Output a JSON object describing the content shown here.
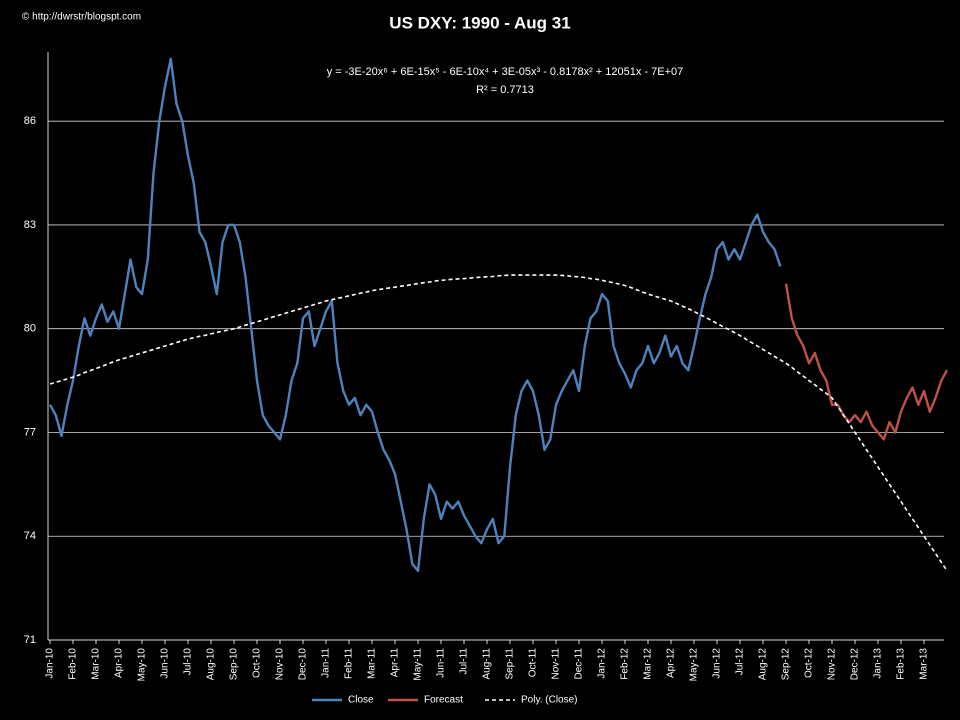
{
  "chart_data": {
    "type": "line",
    "title": "US DXY:  1990 - Aug 31",
    "watermark": "© http://dwrstr/blogspt.com",
    "annotations": [
      "y = -3E-20x⁶ + 6E-15x⁵ - 6E-10x⁴ + 3E-05x³ - 0.8178x² + 12051x - 7E+07",
      "R² = 0.7713"
    ],
    "categories": [
      "Jan-10",
      null,
      null,
      null,
      "Feb-10",
      null,
      null,
      null,
      "Mar-10",
      null,
      null,
      null,
      "Apr-10",
      null,
      null,
      null,
      "May-10",
      null,
      null,
      null,
      "Jun-10",
      null,
      null,
      null,
      "Jul-10",
      null,
      null,
      null,
      "Aug-10",
      null,
      null,
      null,
      "Sep-10",
      null,
      null,
      null,
      "Oct-10",
      null,
      null,
      null,
      "Nov-10",
      null,
      null,
      null,
      "Dec-10",
      null,
      null,
      null,
      "Jan-11",
      null,
      null,
      null,
      "Feb-11",
      null,
      null,
      null,
      "Mar-11",
      null,
      null,
      null,
      "Apr-11",
      null,
      null,
      null,
      "May-11",
      null,
      null,
      null,
      "Jun-11",
      null,
      null,
      null,
      "Jul-11",
      null,
      null,
      null,
      "Aug-11",
      null,
      null,
      null,
      "Sep-11",
      null,
      null,
      null,
      "Oct-11",
      null,
      null,
      null,
      "Nov-11",
      null,
      null,
      null,
      "Dec-11",
      null,
      null,
      null,
      "Jan-12",
      null,
      null,
      null,
      "Feb-12",
      null,
      null,
      null,
      "Mar-12",
      null,
      null,
      null,
      "Apr-12",
      null,
      null,
      null,
      "May-12",
      null,
      null,
      null,
      "Jun-12",
      null,
      null,
      null,
      "Jul-12",
      null,
      null,
      null,
      "Aug-12",
      null,
      null,
      null,
      "Sep-12",
      null,
      null,
      null,
      "Oct-12",
      null,
      null,
      null,
      "Nov-12",
      null,
      null,
      null,
      "Dec-12",
      null,
      null,
      null,
      "Jan-13",
      null,
      null,
      null,
      "Feb-13",
      null,
      null,
      null,
      "Mar-13",
      null,
      null,
      null,
      null
    ],
    "series": [
      {
        "name": "Close",
        "color": "#4f81bd",
        "dash": false,
        "values": [
          77.8,
          77.5,
          76.9,
          77.8,
          78.5,
          79.5,
          80.3,
          79.8,
          80.3,
          80.7,
          80.2,
          80.5,
          80.0,
          81.0,
          82.0,
          81.2,
          81.0,
          82.0,
          84.5,
          86.0,
          87.0,
          87.8,
          86.5,
          86.0,
          85.0,
          84.2,
          82.8,
          82.5,
          81.8,
          81.0,
          82.5,
          83.0,
          83.0,
          82.5,
          81.5,
          80.0,
          78.5,
          77.5,
          77.2,
          77.0,
          76.8,
          77.5,
          78.5,
          79.0,
          80.3,
          80.5,
          79.5,
          80.0,
          80.5,
          80.8,
          79.0,
          78.2,
          77.8,
          78.0,
          77.5,
          77.8,
          77.6,
          77.0,
          76.5,
          76.2,
          75.8,
          75.0,
          74.2,
          73.2,
          73.0,
          74.5,
          75.5,
          75.2,
          74.5,
          75.0,
          74.8,
          75.0,
          74.6,
          74.3,
          74.0,
          73.8,
          74.2,
          74.5,
          73.8,
          74.0,
          76.0,
          77.5,
          78.2,
          78.5,
          78.2,
          77.5,
          76.5,
          76.8,
          77.8,
          78.2,
          78.5,
          78.8,
          78.2,
          79.5,
          80.3,
          80.5,
          81.0,
          80.8,
          79.5,
          79.0,
          78.7,
          78.3,
          78.8,
          79.0,
          79.5,
          79.0,
          79.3,
          79.8,
          79.2,
          79.5,
          79.0,
          78.8,
          79.5,
          80.3,
          81.0,
          81.5,
          82.3,
          82.5,
          82.0,
          82.3,
          82.0,
          82.5,
          83.0,
          83.3,
          82.8,
          82.5,
          82.3,
          81.8,
          null,
          null,
          null,
          null,
          null,
          null,
          null,
          null,
          null,
          null,
          null,
          null,
          null,
          null,
          null,
          null,
          null,
          null,
          null,
          null,
          null,
          null,
          null,
          null,
          null,
          null,
          null,
          null,
          null
        ]
      },
      {
        "name": "Forecast",
        "color": "#c0504d",
        "dash": false,
        "values": [
          null,
          null,
          null,
          null,
          null,
          null,
          null,
          null,
          null,
          null,
          null,
          null,
          null,
          null,
          null,
          null,
          null,
          null,
          null,
          null,
          null,
          null,
          null,
          null,
          null,
          null,
          null,
          null,
          null,
          null,
          null,
          null,
          null,
          null,
          null,
          null,
          null,
          null,
          null,
          null,
          null,
          null,
          null,
          null,
          null,
          null,
          null,
          null,
          null,
          null,
          null,
          null,
          null,
          null,
          null,
          null,
          null,
          null,
          null,
          null,
          null,
          null,
          null,
          null,
          null,
          null,
          null,
          null,
          null,
          null,
          null,
          null,
          null,
          null,
          null,
          null,
          null,
          null,
          null,
          null,
          null,
          null,
          null,
          null,
          null,
          null,
          null,
          null,
          null,
          null,
          null,
          null,
          null,
          null,
          null,
          null,
          null,
          null,
          null,
          null,
          null,
          null,
          null,
          null,
          null,
          null,
          null,
          null,
          null,
          null,
          null,
          null,
          null,
          null,
          null,
          null,
          null,
          null,
          null,
          null,
          null,
          null,
          null,
          null,
          null,
          null,
          null,
          null,
          81.3,
          80.3,
          79.8,
          79.5,
          79.0,
          79.3,
          78.8,
          78.5,
          77.8,
          77.8,
          77.5,
          77.3,
          77.5,
          77.3,
          77.6,
          77.2,
          77.0,
          76.8,
          77.3,
          77.0,
          77.6,
          78.0,
          78.3,
          77.8,
          78.2,
          77.6,
          78.0,
          78.5,
          78.8
        ]
      },
      {
        "name": "Poly. (Close)",
        "color": "#ffffff",
        "dash": true,
        "values": [
          78.4,
          78.45,
          78.5,
          78.55,
          78.6,
          78.66,
          78.73,
          78.79,
          78.85,
          78.91,
          78.98,
          79.04,
          79.1,
          79.15,
          79.2,
          79.25,
          79.3,
          79.35,
          79.4,
          79.45,
          79.5,
          79.55,
          79.6,
          79.65,
          79.7,
          79.74,
          79.78,
          79.81,
          79.85,
          79.89,
          79.93,
          79.96,
          80.0,
          80.05,
          80.1,
          80.15,
          80.2,
          80.25,
          80.3,
          80.35,
          80.4,
          80.45,
          80.5,
          80.55,
          80.6,
          80.65,
          80.7,
          80.75,
          80.8,
          80.84,
          80.88,
          80.91,
          80.95,
          80.99,
          81.03,
          81.06,
          81.1,
          81.13,
          81.15,
          81.18,
          81.2,
          81.23,
          81.25,
          81.28,
          81.3,
          81.33,
          81.35,
          81.38,
          81.4,
          81.41,
          81.43,
          81.44,
          81.45,
          81.46,
          81.48,
          81.49,
          81.5,
          81.51,
          81.53,
          81.54,
          81.55,
          81.55,
          81.55,
          81.55,
          81.55,
          81.55,
          81.55,
          81.55,
          81.55,
          81.54,
          81.53,
          81.51,
          81.5,
          81.48,
          81.45,
          81.43,
          81.4,
          81.36,
          81.33,
          81.29,
          81.25,
          81.19,
          81.13,
          81.06,
          81.0,
          80.95,
          80.9,
          80.85,
          80.8,
          80.73,
          80.65,
          80.58,
          80.5,
          80.41,
          80.33,
          80.24,
          80.15,
          80.06,
          79.98,
          79.89,
          79.8,
          79.7,
          79.6,
          79.5,
          79.4,
          79.3,
          79.2,
          79.1,
          79.0,
          78.88,
          78.75,
          78.63,
          78.5,
          78.38,
          78.25,
          78.13,
          78.0,
          77.75,
          77.5,
          77.25,
          77.0,
          76.75,
          76.5,
          76.25,
          76.0,
          75.75,
          75.5,
          75.25,
          75.0,
          74.75,
          74.5,
          74.25,
          74.0,
          73.75,
          73.5,
          73.25,
          73.0
        ]
      }
    ],
    "ylim": [
      71,
      88
    ],
    "yticks": [
      71,
      74,
      77,
      80,
      83,
      86
    ],
    "grid": true,
    "legend": "bottom"
  }
}
